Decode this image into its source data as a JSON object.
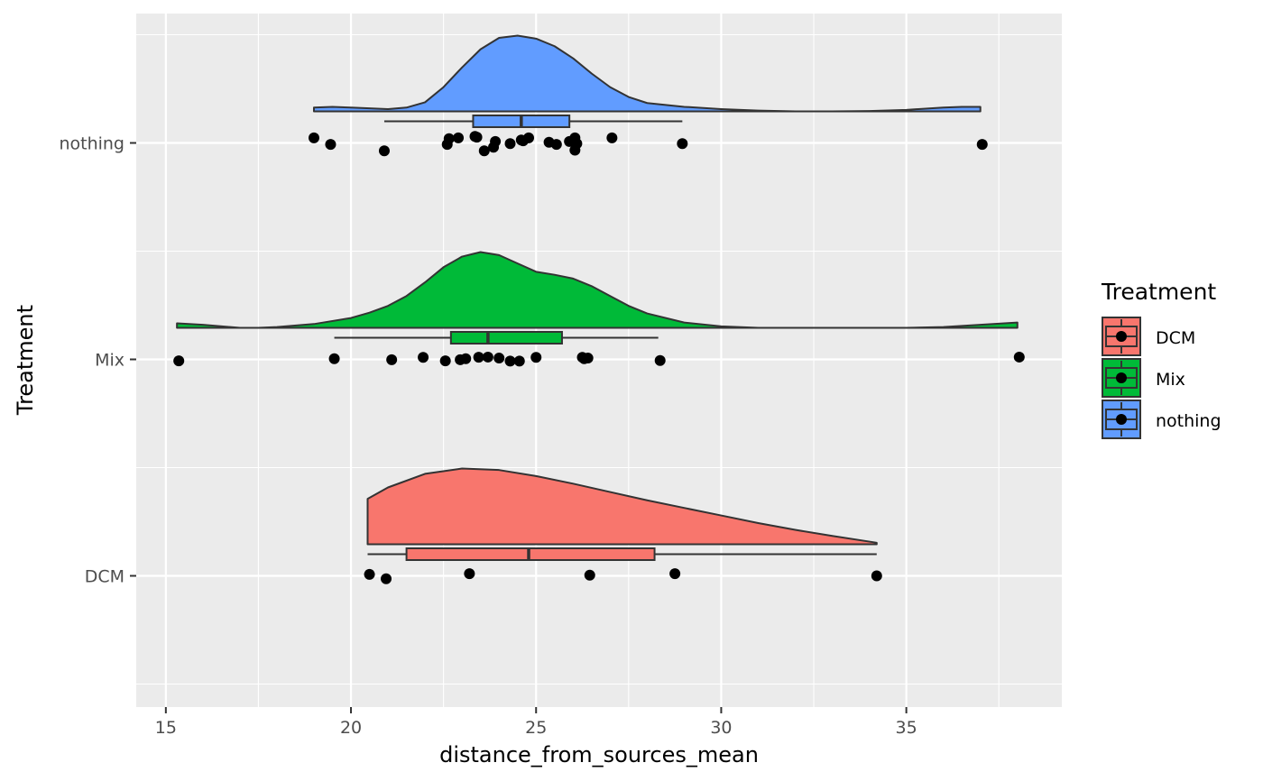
{
  "chart_data": {
    "type": "raincloud",
    "title": "",
    "xlabel": "distance_from_sources_mean",
    "ylabel": "Treatment",
    "xlim": [
      14.2,
      39.2
    ],
    "x_ticks": [
      "15",
      "20",
      "25",
      "30",
      "35"
    ],
    "categories": [
      "DCM",
      "Mix",
      "nothing"
    ],
    "colors": {
      "DCM": "#F8766D",
      "Mix": "#00BA38",
      "nothing": "#619CFF"
    },
    "grid": true,
    "legend": {
      "title": "Treatment",
      "position": "right",
      "items": [
        "DCM",
        "Mix",
        "nothing"
      ]
    },
    "series": [
      {
        "name": "nothing",
        "box": {
          "whisker_low": 20.9,
          "q1": 23.3,
          "median": 24.6,
          "q3": 25.9,
          "whisker_high": 28.95
        },
        "density": {
          "x": [
            19.0,
            19.5,
            20.0,
            20.5,
            21.0,
            21.5,
            22.0,
            22.5,
            23.0,
            23.5,
            24.0,
            24.5,
            25.0,
            25.5,
            26.0,
            26.5,
            27.0,
            27.5,
            28.0,
            29.0,
            30.0,
            31.0,
            32.0,
            33.0,
            34.0,
            35.0,
            36.0,
            36.5,
            37.0
          ],
          "d": [
            0.05,
            0.06,
            0.05,
            0.04,
            0.03,
            0.05,
            0.12,
            0.32,
            0.58,
            0.82,
            0.97,
            1.0,
            0.96,
            0.86,
            0.7,
            0.5,
            0.32,
            0.19,
            0.11,
            0.06,
            0.03,
            0.01,
            0.0,
            0.0,
            0.005,
            0.02,
            0.05,
            0.06,
            0.06
          ]
        },
        "points": [
          {
            "x": 19.0,
            "j": 0.35
          },
          {
            "x": 19.45,
            "j": -0.1
          },
          {
            "x": 20.9,
            "j": -0.55
          },
          {
            "x": 22.6,
            "j": -0.1
          },
          {
            "x": 22.65,
            "j": 0.3
          },
          {
            "x": 22.9,
            "j": 0.35
          },
          {
            "x": 23.35,
            "j": 0.45
          },
          {
            "x": 23.4,
            "j": 0.4
          },
          {
            "x": 23.6,
            "j": -0.55
          },
          {
            "x": 23.85,
            "j": -0.3
          },
          {
            "x": 23.9,
            "j": 0.1
          },
          {
            "x": 24.3,
            "j": -0.05
          },
          {
            "x": 24.6,
            "j": 0.2
          },
          {
            "x": 24.65,
            "j": 0.15
          },
          {
            "x": 24.8,
            "j": 0.35
          },
          {
            "x": 25.35,
            "j": 0.05
          },
          {
            "x": 25.55,
            "j": -0.1
          },
          {
            "x": 25.9,
            "j": 0.1
          },
          {
            "x": 26.05,
            "j": 0.35
          },
          {
            "x": 26.05,
            "j": -0.5
          },
          {
            "x": 26.1,
            "j": -0.05
          },
          {
            "x": 27.05,
            "j": 0.35
          },
          {
            "x": 28.95,
            "j": -0.05
          },
          {
            "x": 37.05,
            "j": -0.1
          }
        ]
      },
      {
        "name": "Mix",
        "box": {
          "whisker_low": 19.55,
          "q1": 22.7,
          "median": 23.7,
          "q3": 25.7,
          "whisker_high": 28.3
        },
        "density": {
          "x": [
            15.3,
            16.0,
            17.0,
            17.5,
            18.0,
            19.0,
            20.0,
            20.5,
            21.0,
            21.5,
            22.0,
            22.5,
            23.0,
            23.5,
            24.0,
            24.5,
            25.0,
            25.5,
            26.0,
            26.5,
            27.0,
            27.5,
            28.0,
            29.0,
            30.0,
            31.0,
            32.0,
            33.0,
            34.0,
            35.0,
            36.0,
            37.0,
            38.0
          ],
          "d": [
            0.06,
            0.04,
            0.0,
            0.0,
            0.01,
            0.05,
            0.13,
            0.2,
            0.29,
            0.42,
            0.6,
            0.8,
            0.94,
            1.0,
            0.96,
            0.85,
            0.74,
            0.7,
            0.65,
            0.55,
            0.42,
            0.29,
            0.19,
            0.07,
            0.02,
            0.0,
            0.0,
            0.0,
            0.0,
            0.0,
            0.01,
            0.04,
            0.07
          ]
        },
        "points": [
          {
            "x": 15.35,
            "j": -0.1
          },
          {
            "x": 19.55,
            "j": 0.05
          },
          {
            "x": 21.1,
            "j": -0.02
          },
          {
            "x": 21.95,
            "j": 0.14
          },
          {
            "x": 22.55,
            "j": -0.1
          },
          {
            "x": 22.95,
            "j": -0.02
          },
          {
            "x": 23.1,
            "j": 0.05
          },
          {
            "x": 23.45,
            "j": 0.15
          },
          {
            "x": 23.7,
            "j": 0.16
          },
          {
            "x": 24.0,
            "j": 0.09
          },
          {
            "x": 24.3,
            "j": -0.12
          },
          {
            "x": 24.55,
            "j": -0.12
          },
          {
            "x": 25.0,
            "j": 0.14
          },
          {
            "x": 26.25,
            "j": 0.14
          },
          {
            "x": 26.3,
            "j": 0.05
          },
          {
            "x": 26.4,
            "j": 0.09
          },
          {
            "x": 28.35,
            "j": -0.08
          },
          {
            "x": 38.05,
            "j": 0.16
          }
        ]
      },
      {
        "name": "DCM",
        "box": {
          "whisker_low": 20.45,
          "q1": 21.5,
          "median": 24.8,
          "q3": 28.2,
          "whisker_high": 34.2
        },
        "density": {
          "x": [
            20.45,
            21.0,
            22.0,
            23.0,
            24.0,
            25.0,
            26.0,
            27.0,
            28.0,
            29.0,
            30.0,
            31.0,
            32.0,
            33.0,
            34.2
          ],
          "d": [
            0.6,
            0.75,
            0.93,
            1.0,
            0.98,
            0.9,
            0.8,
            0.69,
            0.58,
            0.48,
            0.38,
            0.28,
            0.19,
            0.11,
            0.02
          ]
        },
        "points": [
          {
            "x": 20.5,
            "j": 0.1
          },
          {
            "x": 20.95,
            "j": -0.2
          },
          {
            "x": 23.2,
            "j": 0.15
          },
          {
            "x": 26.45,
            "j": 0.05
          },
          {
            "x": 28.75,
            "j": 0.15
          },
          {
            "x": 34.2,
            "j": 0.0
          }
        ]
      }
    ]
  }
}
